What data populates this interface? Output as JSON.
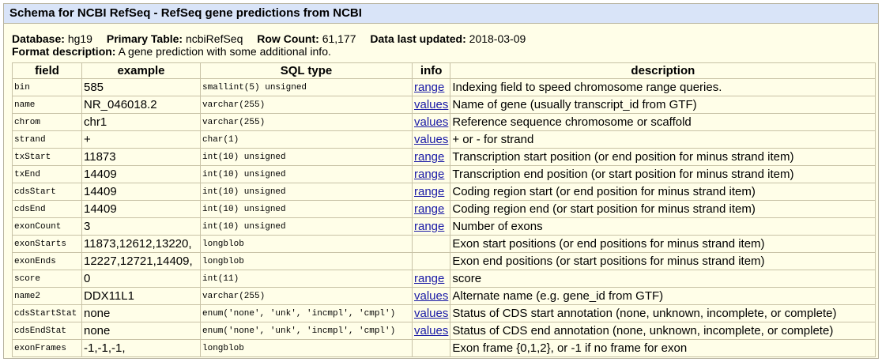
{
  "title": "Schema for NCBI RefSeq - RefSeq gene predictions from NCBI",
  "meta": {
    "database_label": "Database:",
    "database": "hg19",
    "primary_table_label": "Primary Table:",
    "primary_table": "ncbiRefSeq",
    "row_count_label": "Row Count:",
    "row_count": "61,177",
    "updated_label": "Data last updated:",
    "updated": "2018-03-09",
    "format_label": "Format description:",
    "format": "A gene prediction with some additional info."
  },
  "headers": [
    "field",
    "example",
    "SQL type",
    "info",
    "description"
  ],
  "rows": [
    {
      "field": "bin",
      "example": "585",
      "sql": "smallint(5) unsigned",
      "info": "range",
      "desc": "Indexing field to speed chromosome range queries."
    },
    {
      "field": "name",
      "example": "NR_046018.2",
      "sql": "varchar(255)",
      "info": "values",
      "desc": "Name of gene (usually transcript_id from GTF)"
    },
    {
      "field": "chrom",
      "example": "chr1",
      "sql": "varchar(255)",
      "info": "values",
      "desc": "Reference sequence chromosome or scaffold"
    },
    {
      "field": "strand",
      "example": "+",
      "sql": "char(1)",
      "info": "values",
      "desc": "+ or - for strand"
    },
    {
      "field": "txStart",
      "example": "11873",
      "sql": "int(10) unsigned",
      "info": "range",
      "desc": "Transcription start position (or end position for minus strand item)"
    },
    {
      "field": "txEnd",
      "example": "14409",
      "sql": "int(10) unsigned",
      "info": "range",
      "desc": "Transcription end position (or start position for minus strand item)"
    },
    {
      "field": "cdsStart",
      "example": "14409",
      "sql": "int(10) unsigned",
      "info": "range",
      "desc": "Coding region start (or end position for minus strand item)"
    },
    {
      "field": "cdsEnd",
      "example": "14409",
      "sql": "int(10) unsigned",
      "info": "range",
      "desc": "Coding region end (or start position for minus strand item)"
    },
    {
      "field": "exonCount",
      "example": "3",
      "sql": "int(10) unsigned",
      "info": "range",
      "desc": "Number of exons"
    },
    {
      "field": "exonStarts",
      "example": "11873,12612,13220,",
      "sql": "longblob",
      "info": "",
      "desc": "Exon start positions (or end positions for minus strand item)"
    },
    {
      "field": "exonEnds",
      "example": "12227,12721,14409,",
      "sql": "longblob",
      "info": "",
      "desc": "Exon end positions (or start positions for minus strand item)"
    },
    {
      "field": "score",
      "example": "0",
      "sql": "int(11)",
      "info": "range",
      "desc": "score"
    },
    {
      "field": "name2",
      "example": "DDX11L1",
      "sql": "varchar(255)",
      "info": "values",
      "desc": "Alternate name (e.g. gene_id from GTF)"
    },
    {
      "field": "cdsStartStat",
      "example": "none",
      "sql": "enum('none', 'unk', 'incmpl', 'cmpl')",
      "info": "values",
      "desc": "Status of CDS start annotation (none, unknown, incomplete, or complete)"
    },
    {
      "field": "cdsEndStat",
      "example": "none",
      "sql": "enum('none', 'unk', 'incmpl', 'cmpl')",
      "info": "values",
      "desc": "Status of CDS end annotation (none, unknown, incomplete, or complete)"
    },
    {
      "field": "exonFrames",
      "example": "-1,-1,-1,",
      "sql": "longblob",
      "info": "",
      "desc": "Exon frame {0,1,2}, or -1 if no frame for exon"
    }
  ]
}
